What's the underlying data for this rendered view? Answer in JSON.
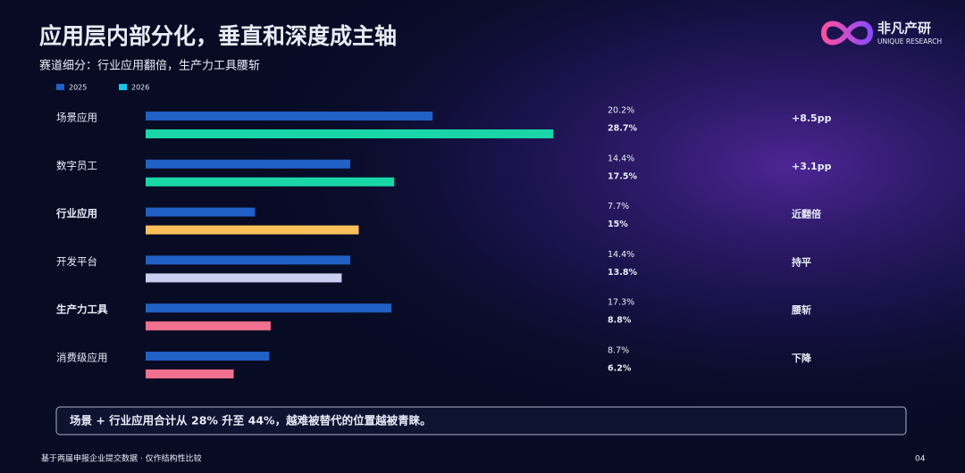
{
  "chart_data": {
    "type": "bar",
    "orientation": "horizontal",
    "title": "应用层内部分化，垂直和深度成主轴",
    "subtitle": "赛道细分：行业应用翻倍，生产力工具腰斩",
    "categories": [
      "场景应用",
      "数字员工",
      "行业应用",
      "开发平台",
      "生产力工具",
      "消费级应用"
    ],
    "series": [
      {
        "name": "2025",
        "color": "#2160c4",
        "values": [
          20.2,
          14.4,
          7.7,
          14.4,
          17.3,
          8.7
        ],
        "value_labels": [
          "20.2%",
          "14.4%",
          "7.7%",
          "14.4%",
          "17.3%",
          "8.7%"
        ]
      },
      {
        "name": "2026",
        "color": "#16c6ea",
        "colors": [
          "#18d6a8",
          "#18d6a8",
          "#fbc05a",
          "#c9cdf0",
          "#f2708f",
          "#f2708f"
        ],
        "values": [
          28.7,
          17.5,
          15,
          13.8,
          8.8,
          6.2
        ],
        "value_labels": [
          "28.7%",
          "17.5%",
          "15%",
          "13.8%",
          "8.8%",
          "6.2%"
        ]
      }
    ],
    "annotations": [
      "+8.5pp",
      "+3.1pp",
      "近翻倍",
      "持平",
      "腰斩",
      "下降"
    ],
    "note": "场景 + 行业应用合计从 28% 升至 44%，越难被替代的位置越被青睐。",
    "footnote": "基于两届申报企业提交数据 · 仅作结构性比较",
    "page_number": "04",
    "brand": {
      "name": "非凡产研",
      "tagline": "UNIQUE RESEARCH"
    }
  }
}
